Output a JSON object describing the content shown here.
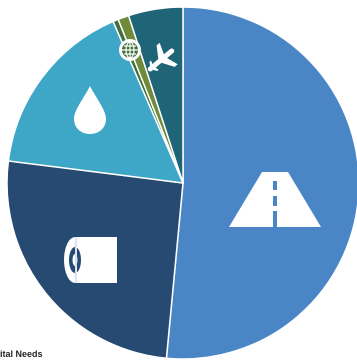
{
  "chart_data": {
    "type": "pie",
    "title": "",
    "start_angle_deg": 0,
    "direction": "clockwise",
    "slices": [
      {
        "icon": "road-icon",
        "value": 51.5,
        "color": "#4a86c6"
      },
      {
        "icon": "toilet-paper-icon",
        "value": 25.5,
        "color": "#264a72"
      },
      {
        "icon": "water-drop-icon",
        "value": 16.5,
        "color": "#3ea6c6"
      },
      {
        "icon": "globe-icon",
        "value": 0.5,
        "color": "#3f6f3a"
      },
      {
        "icon": "globe-icon-2",
        "value": 1.0,
        "color": "#6f8a3a"
      },
      {
        "icon": "airplane-icon",
        "value": 5.0,
        "color": "#1f6577"
      }
    ]
  },
  "footer": {
    "cutoff_text": "ital Needs"
  },
  "colors": {
    "icon_fill": "#ffffff",
    "separator": "#ffffff"
  }
}
